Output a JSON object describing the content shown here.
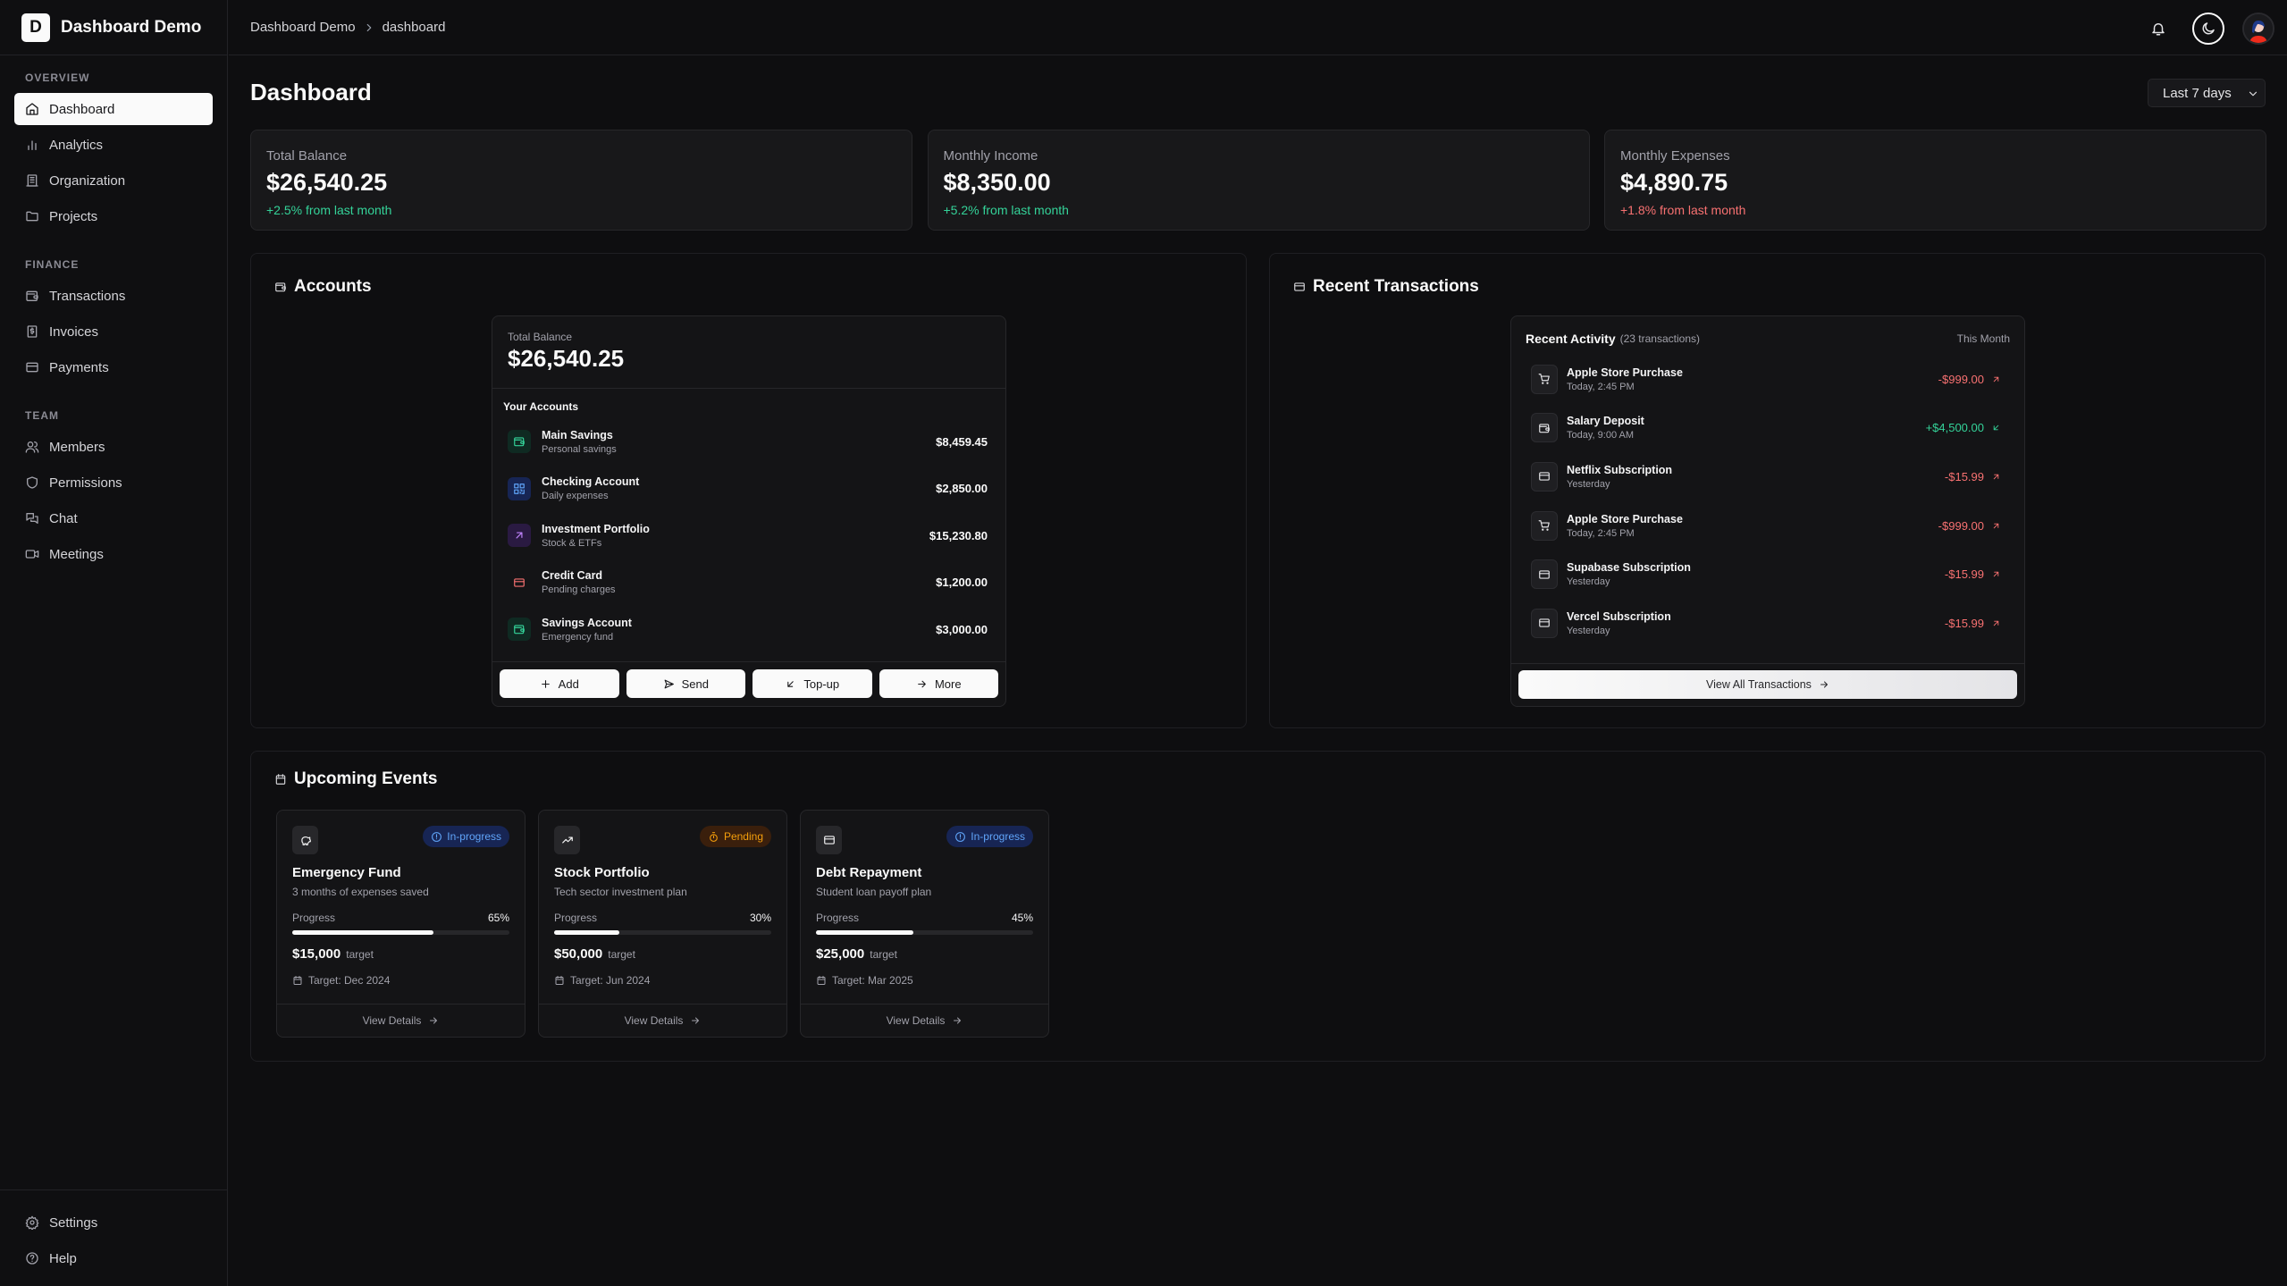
{
  "app": {
    "logo_letter": "D",
    "title": "Dashboard Demo"
  },
  "breadcrumb": {
    "root": "Dashboard Demo",
    "current": "dashboard"
  },
  "sidebar": {
    "sections": [
      {
        "label": "OVERVIEW",
        "items": [
          {
            "label": "Dashboard",
            "icon": "home",
            "active": true
          },
          {
            "label": "Analytics",
            "icon": "bar-chart"
          },
          {
            "label": "Organization",
            "icon": "building"
          },
          {
            "label": "Projects",
            "icon": "folder"
          }
        ]
      },
      {
        "label": "FINANCE",
        "items": [
          {
            "label": "Transactions",
            "icon": "wallet"
          },
          {
            "label": "Invoices",
            "icon": "receipt"
          },
          {
            "label": "Payments",
            "icon": "credit-card"
          }
        ]
      },
      {
        "label": "TEAM",
        "items": [
          {
            "label": "Members",
            "icon": "users"
          },
          {
            "label": "Permissions",
            "icon": "shield"
          },
          {
            "label": "Chat",
            "icon": "messages"
          },
          {
            "label": "Meetings",
            "icon": "video"
          }
        ]
      }
    ],
    "footer": [
      {
        "label": "Settings",
        "icon": "gear"
      },
      {
        "label": "Help",
        "icon": "help-circle"
      }
    ]
  },
  "page": {
    "title": "Dashboard",
    "range": "Last 7 days"
  },
  "stats": [
    {
      "label": "Total Balance",
      "amount": "$26,540.25",
      "change": "+2.5% from last month",
      "trend": "up"
    },
    {
      "label": "Monthly Income",
      "amount": "$8,350.00",
      "change": "+5.2% from last month",
      "trend": "up"
    },
    {
      "label": "Monthly Expenses",
      "amount": "$4,890.75",
      "change": "+1.8% from last month",
      "trend": "down"
    }
  ],
  "accounts": {
    "title": "Accounts",
    "total_label": "Total Balance",
    "total": "$26,540.25",
    "list_label": "Your Accounts",
    "items": [
      {
        "name": "Main Savings",
        "sub": "Personal savings",
        "amount": "$8,459.45",
        "icon": "wallet",
        "color": "#34d399",
        "bg": "#0f2a22"
      },
      {
        "name": "Checking Account",
        "sub": "Daily expenses",
        "amount": "$2,850.00",
        "icon": "qr-code",
        "color": "#60a5fa",
        "bg": "#172554"
      },
      {
        "name": "Investment Portfolio",
        "sub": "Stock & ETFs",
        "amount": "$15,230.80",
        "icon": "arrow-up-right",
        "color": "#c084fc",
        "bg": "#2a1a42"
      },
      {
        "name": "Credit Card",
        "sub": "Pending charges",
        "amount": "$1,200.00",
        "icon": "credit-card",
        "color": "#f87171",
        "bg": "transparent"
      },
      {
        "name": "Savings Account",
        "sub": "Emergency fund",
        "amount": "$3,000.00",
        "icon": "wallet",
        "color": "#34d399",
        "bg": "#0f2a22"
      }
    ],
    "actions": [
      {
        "label": "Add",
        "icon": "plus"
      },
      {
        "label": "Send",
        "icon": "send"
      },
      {
        "label": "Top-up",
        "icon": "arrow-down-left"
      },
      {
        "label": "More",
        "icon": "arrow-right"
      }
    ]
  },
  "transactions": {
    "title": "Recent Transactions",
    "activity_label": "Recent Activity",
    "count": "(23 transactions)",
    "period": "This Month",
    "items": [
      {
        "name": "Apple Store Purchase",
        "time": "Today, 2:45 PM",
        "amount": "-$999.00",
        "icon": "shopping-cart",
        "direction": "out"
      },
      {
        "name": "Salary Deposit",
        "time": "Today, 9:00 AM",
        "amount": "+$4,500.00",
        "icon": "wallet",
        "direction": "in"
      },
      {
        "name": "Netflix Subscription",
        "time": "Yesterday",
        "amount": "-$15.99",
        "icon": "credit-card",
        "direction": "out"
      },
      {
        "name": "Apple Store Purchase",
        "time": "Today, 2:45 PM",
        "amount": "-$999.00",
        "icon": "shopping-cart",
        "direction": "out"
      },
      {
        "name": "Supabase Subscription",
        "time": "Yesterday",
        "amount": "-$15.99",
        "icon": "credit-card",
        "direction": "out"
      },
      {
        "name": "Vercel Subscription",
        "time": "Yesterday",
        "amount": "-$15.99",
        "icon": "credit-card",
        "direction": "out"
      }
    ],
    "view_all": "View All Transactions"
  },
  "events": {
    "title": "Upcoming Events",
    "progress_label": "Progress",
    "target_word": "target",
    "details_label": "View Details",
    "items": [
      {
        "title": "Emergency Fund",
        "sub": "3 months of expenses saved",
        "status": "In-progress",
        "progress": 65,
        "progress_text": "65%",
        "target": "$15,000",
        "date": "Target: Dec 2024",
        "icon": "piggy-bank"
      },
      {
        "title": "Stock Portfolio",
        "sub": "Tech sector investment plan",
        "status": "Pending",
        "progress": 30,
        "progress_text": "30%",
        "target": "$50,000",
        "date": "Target: Jun 2024",
        "icon": "trending-up"
      },
      {
        "title": "Debt Repayment",
        "sub": "Student loan payoff plan",
        "status": "In-progress",
        "progress": 45,
        "progress_text": "45%",
        "target": "$25,000",
        "date": "Target: Mar 2025",
        "icon": "credit-card"
      }
    ]
  },
  "colors": {
    "positive": "#34d399",
    "negative": "#f87171",
    "in_progress_bg": "#172554",
    "in_progress_fg": "#60a5fa",
    "pending_bg": "#3a1f0c",
    "pending_fg": "#f59e0b"
  }
}
